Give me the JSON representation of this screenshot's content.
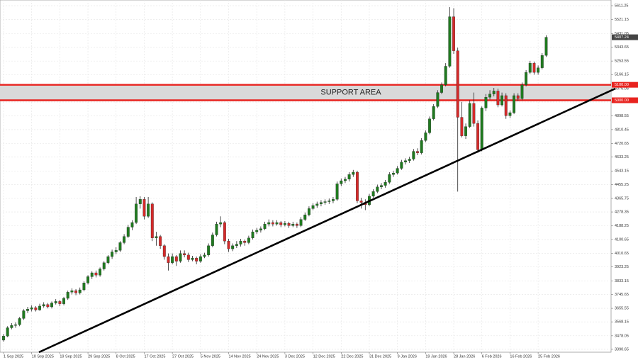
{
  "chart_data": {
    "type": "candlestick",
    "up_color": "#1f7a1f",
    "down_color": "#d42a2a",
    "grid": true,
    "ylim": [
      3372,
      5648
    ],
    "yticks": [
      5611.25,
      5521.15,
      5431.05,
      5343.65,
      5253.55,
      5166.15,
      5076.05,
      4988.65,
      4898.55,
      4810.45,
      4720.65,
      4633.25,
      4543.15,
      4455.25,
      4365.75,
      4278.35,
      4188.25,
      4100.65,
      4010.65,
      3923.25,
      3833.15,
      3745.65,
      3655.55,
      3568.15,
      3478.05,
      3390.65
    ],
    "current_price": 5407.24,
    "support": {
      "label": "SUPPORT AREA",
      "color": "#e8231f",
      "fill": "#d9d9d9",
      "upper": {
        "value": 5100,
        "label": "5100.00"
      },
      "lower": {
        "value": 5000,
        "label": "5000.00"
      }
    },
    "categories": [
      "1 Sep 2025",
      null,
      null,
      null,
      null,
      null,
      null,
      "10 Sep 2025",
      null,
      null,
      null,
      null,
      null,
      null,
      "19 Sep 2025",
      null,
      null,
      null,
      null,
      null,
      null,
      "29 Sep 2025",
      null,
      null,
      null,
      null,
      null,
      null,
      "8 Oct 2025",
      null,
      null,
      null,
      null,
      null,
      null,
      "17 Oct 2025",
      null,
      null,
      null,
      null,
      null,
      null,
      "27 Oct 2025",
      null,
      null,
      null,
      null,
      null,
      null,
      "5 Nov 2025",
      null,
      null,
      null,
      null,
      null,
      null,
      "14 Nov 2025",
      null,
      null,
      null,
      null,
      null,
      null,
      "24 Nov 2025",
      null,
      null,
      null,
      null,
      null,
      null,
      "3 Dec 2025",
      null,
      null,
      null,
      null,
      null,
      null,
      "12 Dec 2025",
      null,
      null,
      null,
      null,
      null,
      null,
      "22 Dec 2025",
      null,
      null,
      null,
      null,
      null,
      null,
      "31 Dec 2025",
      null,
      null,
      null,
      null,
      null,
      null,
      "9 Jan 2026",
      null,
      null,
      null,
      null,
      null,
      null,
      "19 Jan 2026",
      null,
      null,
      null,
      null,
      null,
      null,
      "28 Jan 2026",
      null,
      null,
      null,
      null,
      null,
      null,
      "6 Feb 2026",
      null,
      null,
      null,
      null,
      null,
      null,
      "16 Feb 2026",
      null,
      null,
      null,
      null,
      null,
      null,
      "25 Feb 2026",
      null,
      null
    ],
    "ohlc": [
      [
        3450,
        3490,
        3440,
        3476
      ],
      [
        3476,
        3540,
        3470,
        3530
      ],
      [
        3530,
        3560,
        3520,
        3545
      ],
      [
        3545,
        3565,
        3530,
        3550
      ],
      [
        3550,
        3600,
        3540,
        3590
      ],
      [
        3590,
        3650,
        3580,
        3640
      ],
      [
        3640,
        3665,
        3625,
        3650
      ],
      [
        3650,
        3675,
        3635,
        3660
      ],
      [
        3660,
        3670,
        3635,
        3645
      ],
      [
        3645,
        3685,
        3640,
        3670
      ],
      [
        3670,
        3695,
        3660,
        3680
      ],
      [
        3680,
        3690,
        3655,
        3665
      ],
      [
        3665,
        3700,
        3655,
        3690
      ],
      [
        3690,
        3715,
        3680,
        3700
      ],
      [
        3700,
        3710,
        3670,
        3685
      ],
      [
        3685,
        3730,
        3675,
        3720
      ],
      [
        3720,
        3770,
        3710,
        3760
      ],
      [
        3760,
        3785,
        3745,
        3770
      ],
      [
        3770,
        3780,
        3740,
        3755
      ],
      [
        3755,
        3790,
        3745,
        3775
      ],
      [
        3775,
        3830,
        3765,
        3820
      ],
      [
        3820,
        3870,
        3810,
        3860
      ],
      [
        3860,
        3895,
        3845,
        3885
      ],
      [
        3885,
        3900,
        3855,
        3870
      ],
      [
        3870,
        3920,
        3860,
        3910
      ],
      [
        3910,
        3960,
        3900,
        3950
      ],
      [
        3950,
        4000,
        3940,
        3990
      ],
      [
        3990,
        4035,
        3975,
        4020
      ],
      [
        4020,
        4050,
        4005,
        4030
      ],
      [
        4030,
        4090,
        4020,
        4080
      ],
      [
        4080,
        4135,
        4070,
        4120
      ],
      [
        4120,
        4195,
        4110,
        4180
      ],
      [
        4180,
        4225,
        4160,
        4210
      ],
      [
        4210,
        4375,
        4200,
        4330
      ],
      [
        4330,
        4380,
        4300,
        4360
      ],
      [
        4360,
        4375,
        4230,
        4250
      ],
      [
        4250,
        4375,
        4240,
        4330
      ],
      [
        4330,
        4340,
        4090,
        4110
      ],
      [
        4110,
        4150,
        4060,
        4120
      ],
      [
        4120,
        4130,
        4040,
        4060
      ],
      [
        4060,
        4070,
        3970,
        3990
      ],
      [
        3990,
        4010,
        3900,
        3950
      ],
      [
        3950,
        4010,
        3940,
        3990
      ],
      [
        3990,
        4000,
        3930,
        3960
      ],
      [
        3960,
        4030,
        3950,
        4010
      ],
      [
        4010,
        4030,
        3985,
        4000
      ],
      [
        4000,
        4015,
        3955,
        3970
      ],
      [
        3970,
        3995,
        3960,
        3980
      ],
      [
        3980,
        3990,
        3940,
        3960
      ],
      [
        3960,
        4005,
        3950,
        3990
      ],
      [
        3990,
        4015,
        3980,
        4000
      ],
      [
        4000,
        4075,
        3990,
        4060
      ],
      [
        4060,
        4145,
        4050,
        4130
      ],
      [
        4130,
        4215,
        4120,
        4200
      ],
      [
        4200,
        4250,
        4180,
        4210
      ],
      [
        4210,
        4220,
        4070,
        4090
      ],
      [
        4090,
        4105,
        4020,
        4040
      ],
      [
        4040,
        4075,
        4025,
        4060
      ],
      [
        4060,
        4090,
        4045,
        4070
      ],
      [
        4070,
        4105,
        4055,
        4090
      ],
      [
        4090,
        4100,
        4060,
        4080
      ],
      [
        4080,
        4125,
        4070,
        4110
      ],
      [
        4110,
        4165,
        4100,
        4150
      ],
      [
        4150,
        4175,
        4135,
        4160
      ],
      [
        4160,
        4185,
        4145,
        4170
      ],
      [
        4170,
        4215,
        4160,
        4200
      ],
      [
        4200,
        4230,
        4185,
        4210
      ],
      [
        4210,
        4225,
        4185,
        4200
      ],
      [
        4200,
        4225,
        4190,
        4210
      ],
      [
        4210,
        4220,
        4180,
        4195
      ],
      [
        4195,
        4220,
        4185,
        4205
      ],
      [
        4205,
        4215,
        4175,
        4190
      ],
      [
        4190,
        4215,
        4180,
        4200
      ],
      [
        4200,
        4210,
        4175,
        4190
      ],
      [
        4190,
        4245,
        4180,
        4230
      ],
      [
        4230,
        4275,
        4220,
        4260
      ],
      [
        4260,
        4315,
        4250,
        4300
      ],
      [
        4300,
        4335,
        4290,
        4320
      ],
      [
        4320,
        4345,
        4305,
        4330
      ],
      [
        4330,
        4355,
        4315,
        4340
      ],
      [
        4340,
        4360,
        4325,
        4345
      ],
      [
        4345,
        4365,
        4330,
        4350
      ],
      [
        4350,
        4375,
        4335,
        4360
      ],
      [
        4360,
        4475,
        4350,
        4460
      ],
      [
        4460,
        4495,
        4445,
        4480
      ],
      [
        4480,
        4505,
        4465,
        4490
      ],
      [
        4490,
        4535,
        4475,
        4520
      ],
      [
        4520,
        4550,
        4505,
        4535
      ],
      [
        4535,
        4545,
        4335,
        4350
      ],
      [
        4350,
        4370,
        4300,
        4340
      ],
      [
        4340,
        4360,
        4290,
        4325
      ],
      [
        4325,
        4395,
        4315,
        4380
      ],
      [
        4380,
        4425,
        4370,
        4410
      ],
      [
        4410,
        4455,
        4400,
        4440
      ],
      [
        4440,
        4465,
        4425,
        4450
      ],
      [
        4450,
        4485,
        4435,
        4470
      ],
      [
        4470,
        4535,
        4460,
        4520
      ],
      [
        4520,
        4545,
        4505,
        4530
      ],
      [
        4530,
        4575,
        4520,
        4560
      ],
      [
        4560,
        4615,
        4550,
        4600
      ],
      [
        4600,
        4625,
        4585,
        4610
      ],
      [
        4610,
        4635,
        4595,
        4620
      ],
      [
        4620,
        4685,
        4610,
        4670
      ],
      [
        4670,
        4690,
        4645,
        4660
      ],
      [
        4660,
        4755,
        4650,
        4740
      ],
      [
        4740,
        4805,
        4730,
        4790
      ],
      [
        4790,
        4895,
        4780,
        4880
      ],
      [
        4880,
        4975,
        4870,
        4960
      ],
      [
        4960,
        5065,
        4950,
        5050
      ],
      [
        5050,
        5115,
        5040,
        5100
      ],
      [
        5100,
        5240,
        5090,
        5220
      ],
      [
        5220,
        5602,
        5210,
        5540
      ],
      [
        5540,
        5595,
        5300,
        5320
      ],
      [
        5320,
        5340,
        4410,
        4890
      ],
      [
        4890,
        4990,
        4760,
        4770
      ],
      [
        4770,
        4850,
        4750,
        4830
      ],
      [
        4830,
        5000,
        4820,
        4980
      ],
      [
        4980,
        5050,
        4830,
        4850
      ],
      [
        4850,
        4870,
        4660,
        4680
      ],
      [
        4680,
        4960,
        4670,
        4950
      ],
      [
        4950,
        5040,
        4930,
        5020
      ],
      [
        5020,
        5065,
        5005,
        5040
      ],
      [
        5040,
        5080,
        5025,
        5060
      ],
      [
        5060,
        5075,
        4955,
        4970
      ],
      [
        4970,
        5050,
        4960,
        5030
      ],
      [
        5030,
        5045,
        4880,
        4900
      ],
      [
        4900,
        4935,
        4885,
        4920
      ],
      [
        4920,
        5045,
        4910,
        5030
      ],
      [
        5030,
        5045,
        4995,
        5010
      ],
      [
        5010,
        5115,
        5000,
        5100
      ],
      [
        5100,
        5195,
        5090,
        5180
      ],
      [
        5180,
        5255,
        5170,
        5240
      ],
      [
        5240,
        5250,
        5165,
        5180
      ],
      [
        5180,
        5225,
        5165,
        5210
      ],
      [
        5210,
        5305,
        5200,
        5290
      ],
      [
        5290,
        5420,
        5280,
        5407.24
      ]
    ]
  }
}
